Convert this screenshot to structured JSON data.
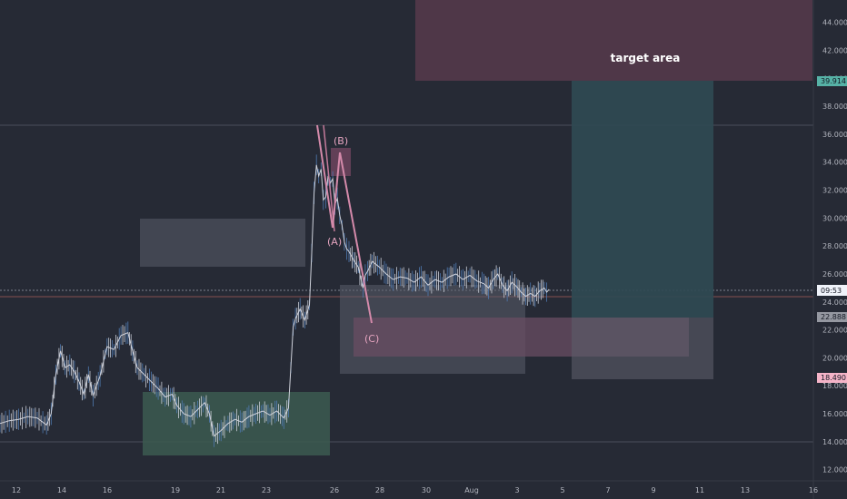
{
  "chart_data": {
    "type": "line",
    "y_axis_ticks": [
      "12.000",
      "14.000",
      "16.000",
      "18.000",
      "20.000",
      "22.000",
      "24.000",
      "26.000",
      "28.000",
      "30.000",
      "32.000",
      "34.000",
      "36.000",
      "38.000",
      "40.000",
      "42.000",
      "44.000"
    ],
    "x_axis_ticks": [
      "12",
      "14",
      "16",
      "19",
      "21",
      "23",
      "26",
      "28",
      "30",
      "Aug",
      "3",
      "5",
      "7",
      "9",
      "11",
      "13",
      "16"
    ],
    "ylim": [
      11.2,
      45.6
    ],
    "price_badges": {
      "target_high": "39.914",
      "countdown": "09:53",
      "support_low": "22.888",
      "stop_level": "18.490"
    },
    "wave_labels": {
      "a": "(A)",
      "b": "(B)",
      "c": "(C)"
    },
    "target_label": "target area",
    "price_series": [
      [
        0,
        15.3
      ],
      [
        0.4,
        15.5
      ],
      [
        0.8,
        15.6
      ],
      [
        1.2,
        15.8
      ],
      [
        1.6,
        15.7
      ],
      [
        2.0,
        15.2
      ],
      [
        2.2,
        16.0
      ],
      [
        2.4,
        18.8
      ],
      [
        2.6,
        20.5
      ],
      [
        2.8,
        19.3
      ],
      [
        3.0,
        19.5
      ],
      [
        3.2,
        19.0
      ],
      [
        3.4,
        18.3
      ],
      [
        3.6,
        17.4
      ],
      [
        3.8,
        18.8
      ],
      [
        4.0,
        17.3
      ],
      [
        4.3,
        18.7
      ],
      [
        4.6,
        20.8
      ],
      [
        4.9,
        20.6
      ],
      [
        5.2,
        21.6
      ],
      [
        5.5,
        21.8
      ],
      [
        5.7,
        20.5
      ],
      [
        5.9,
        19.3
      ],
      [
        6.2,
        18.8
      ],
      [
        6.5,
        18.3
      ],
      [
        6.8,
        17.8
      ],
      [
        7.1,
        17.2
      ],
      [
        7.4,
        17.4
      ],
      [
        7.6,
        16.6
      ],
      [
        7.9,
        16.0
      ],
      [
        8.2,
        15.8
      ],
      [
        8.5,
        16.3
      ],
      [
        8.8,
        16.8
      ],
      [
        9.0,
        16.0
      ],
      [
        9.2,
        14.4
      ],
      [
        9.5,
        14.8
      ],
      [
        9.8,
        15.3
      ],
      [
        10.1,
        15.6
      ],
      [
        10.4,
        15.4
      ],
      [
        10.7,
        15.8
      ],
      [
        11.0,
        16.0
      ],
      [
        11.3,
        16.2
      ],
      [
        11.6,
        15.9
      ],
      [
        11.9,
        16.2
      ],
      [
        12.2,
        15.7
      ],
      [
        12.4,
        16.4
      ],
      [
        12.5,
        19.3
      ],
      [
        12.6,
        22.2
      ],
      [
        12.7,
        22.8
      ],
      [
        12.9,
        23.5
      ],
      [
        13.1,
        22.7
      ],
      [
        13.3,
        23.8
      ],
      [
        13.4,
        27.5
      ],
      [
        13.5,
        31.8
      ],
      [
        13.6,
        33.8
      ],
      [
        13.7,
        33.0
      ],
      [
        13.8,
        33.5
      ],
      [
        13.9,
        31.3
      ],
      [
        14.0,
        31.5
      ],
      [
        14.1,
        33.0
      ],
      [
        14.2,
        32.5
      ],
      [
        14.3,
        32.8
      ],
      [
        14.4,
        31.0
      ],
      [
        14.5,
        31.4
      ],
      [
        14.6,
        30.2
      ],
      [
        14.7,
        29.5
      ],
      [
        14.8,
        28.3
      ],
      [
        14.9,
        27.8
      ],
      [
        15.0,
        27.6
      ],
      [
        15.2,
        27.0
      ],
      [
        15.4,
        26.5
      ],
      [
        15.6,
        25.0
      ],
      [
        15.7,
        25.9
      ],
      [
        15.8,
        26.2
      ],
      [
        16.0,
        26.9
      ],
      [
        16.3,
        26.5
      ],
      [
        16.6,
        26.0
      ],
      [
        16.9,
        25.6
      ],
      [
        17.2,
        25.8
      ],
      [
        17.5,
        25.7
      ],
      [
        17.8,
        25.4
      ],
      [
        18.1,
        25.8
      ],
      [
        18.4,
        25.2
      ],
      [
        18.7,
        25.6
      ],
      [
        19.0,
        25.4
      ],
      [
        19.3,
        25.8
      ],
      [
        19.6,
        26.0
      ],
      [
        19.9,
        25.6
      ],
      [
        20.2,
        25.9
      ],
      [
        20.5,
        25.5
      ],
      [
        20.8,
        25.3
      ],
      [
        21.0,
        25.0
      ],
      [
        21.2,
        25.6
      ],
      [
        21.4,
        26.0
      ],
      [
        21.6,
        25.2
      ],
      [
        21.8,
        24.8
      ],
      [
        22.0,
        25.4
      ],
      [
        22.2,
        25.1
      ],
      [
        22.4,
        24.7
      ],
      [
        22.6,
        24.4
      ],
      [
        22.8,
        24.6
      ],
      [
        23.0,
        24.4
      ],
      [
        23.2,
        24.8
      ],
      [
        23.4,
        25.0
      ],
      [
        23.5,
        24.7
      ],
      [
        23.6,
        24.9
      ]
    ]
  }
}
